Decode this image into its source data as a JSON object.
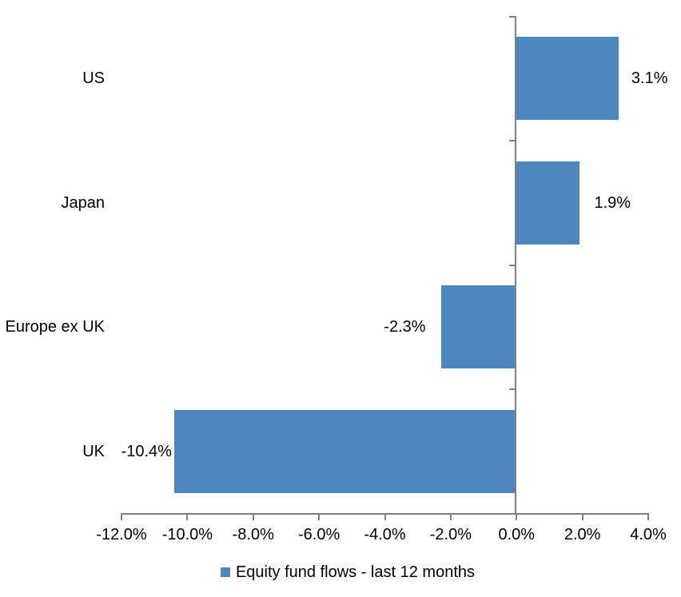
{
  "chart_data": {
    "type": "bar",
    "orientation": "horizontal",
    "title": "",
    "categories": [
      "US",
      "Japan",
      "Europe ex UK",
      "UK"
    ],
    "values": [
      3.1,
      1.9,
      -2.3,
      -10.4
    ],
    "data_labels": [
      "3.1%",
      "1.9%",
      "-2.3%",
      "-10.4%"
    ],
    "series": [
      {
        "name": "Equity fund flows - last 12 months",
        "values": [
          3.1,
          1.9,
          -2.3,
          -10.4
        ]
      }
    ],
    "xlabel": "",
    "ylabel": "",
    "xlim": [
      -12,
      4
    ],
    "x_tick_step": 2,
    "x_tick_labels": [
      "-12.0%",
      "-10.0%",
      "-8.0%",
      "-6.0%",
      "-4.0%",
      "-2.0%",
      "0.0%",
      "2.0%",
      "4.0%"
    ],
    "grid": false,
    "legend_position": "bottom",
    "legend_label": "Equity fund flows - last 12 months",
    "colors": {
      "bar": "#4E86C0",
      "axis": "#808080",
      "text": "#000000",
      "background": "#FFFFFF"
    }
  }
}
